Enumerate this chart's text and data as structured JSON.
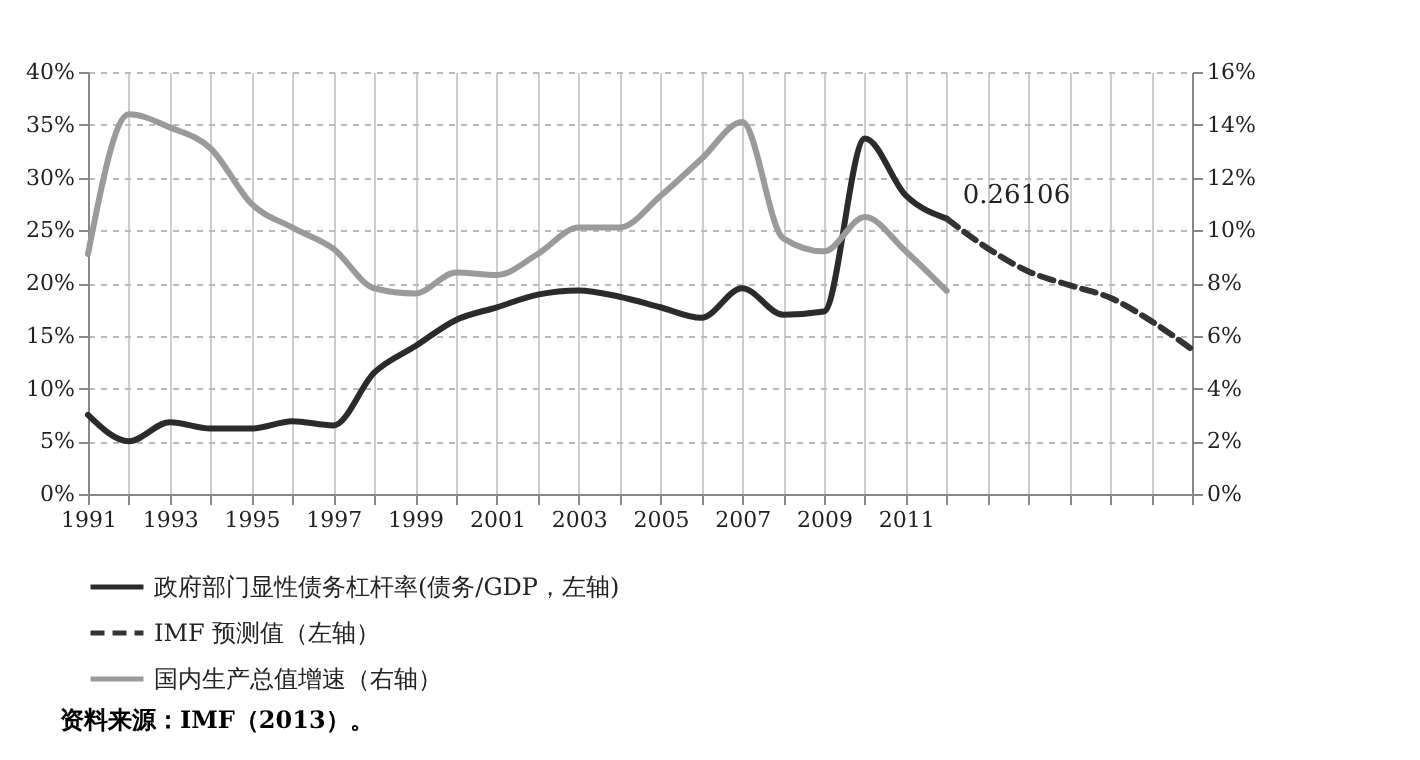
{
  "chart_data": {
    "type": "line",
    "xlim": [
      1991,
      2018
    ],
    "xticks": [
      1991,
      {
        "value": 1992,
        "label": null
      },
      1993,
      {
        "value": 1994,
        "label": null
      },
      1995,
      {
        "value": 1996,
        "label": null
      },
      1997,
      {
        "value": 1998,
        "label": null
      },
      1999,
      {
        "value": 2000,
        "label": null
      },
      2001,
      {
        "value": 2002,
        "label": null
      },
      2003,
      {
        "value": 2004,
        "label": null
      },
      2005,
      {
        "value": 2006,
        "label": null
      },
      2007,
      {
        "value": 2008,
        "label": null
      },
      2009,
      {
        "value": 2010,
        "label": null
      },
      2011,
      {
        "value": 2012,
        "label": null
      },
      {
        "value": 2013,
        "label": null
      },
      {
        "value": 2014,
        "label": null
      },
      {
        "value": 2015,
        "label": null
      },
      {
        "value": 2016,
        "label": null
      },
      {
        "value": 2017,
        "label": null
      },
      {
        "value": 2018,
        "label": null
      }
    ],
    "ylim": [
      0,
      40
    ],
    "yticks": [
      {
        "value": 0,
        "label": "0%"
      },
      {
        "value": 5,
        "label": "5%"
      },
      {
        "value": 10,
        "label": "10%"
      },
      {
        "value": 15,
        "label": "15%"
      },
      {
        "value": 20,
        "label": "20%"
      },
      {
        "value": 25,
        "label": "25%"
      },
      {
        "value": 30,
        "label": "30%"
      },
      {
        "value": 35,
        "label": "35%"
      },
      {
        "value": 40,
        "label": "40%"
      }
    ],
    "y2lim": [
      0,
      16
    ],
    "y2ticks": [
      {
        "value": 0,
        "label": "0%"
      },
      {
        "value": 2,
        "label": "2%"
      },
      {
        "value": 4,
        "label": "4%"
      },
      {
        "value": 6,
        "label": "6%"
      },
      {
        "value": 8,
        "label": "8%"
      },
      {
        "value": 10,
        "label": "10%"
      },
      {
        "value": 12,
        "label": "12%"
      },
      {
        "value": 14,
        "label": "14%"
      },
      {
        "value": 16,
        "label": "16%"
      }
    ],
    "grid": true,
    "legend": "bottom",
    "annotations": [
      {
        "text": "0.26106",
        "x": 2012,
        "y": 26.106
      },
      "资料来源：IMF（2013）。"
    ],
    "series": [
      {
        "name": "政府部门显性债务杠杆率(债务/GDP，左轴)",
        "color": "#2b2b2b",
        "line_style": "solid",
        "x": [
          1991,
          1992,
          1993,
          1994,
          1995,
          1996,
          1997,
          1998,
          1999,
          2000,
          2001,
          2002,
          2003,
          2004,
          2005,
          2006,
          2007,
          2008,
          2009,
          2010,
          2011,
          2012
        ],
        "values": [
          7.5,
          5,
          6.8,
          6.2,
          6.2,
          6.9,
          6.5,
          11.5,
          14,
          16.5,
          17.7,
          18.9,
          19.3,
          18.7,
          17.7,
          16.7,
          19.5,
          17,
          17.3,
          33.7,
          28.3,
          26.106
        ]
      },
      {
        "name": "IMF 预测值（左轴）",
        "color": "#333333",
        "line_style": "dashed",
        "x": [
          2012,
          2013,
          2014,
          2015,
          2016,
          2017,
          2018
        ],
        "values": [
          26.106,
          23.3,
          21.1,
          19.8,
          18.6,
          16.4,
          13.7
        ]
      },
      {
        "name": "国内生产总值增速（右轴）",
        "color": "#9a9a9a",
        "line_style": "solid",
        "axis": "y2",
        "x": [
          1991,
          1992,
          1993,
          1994,
          1995,
          1996,
          1997,
          1998,
          1999,
          2000,
          2001,
          2002,
          2003,
          2004,
          2005,
          2006,
          2007,
          2008,
          2009,
          2010,
          2011,
          2012
        ],
        "values": [
          9.1,
          14.4,
          13.9,
          13.1,
          11,
          10.1,
          9.3,
          7.8,
          7.6,
          8.4,
          8.3,
          9.1,
          10.1,
          10.1,
          11.3,
          12.7,
          14.1,
          9.7,
          9.2,
          10.5,
          9.2,
          7.7
        ]
      }
    ]
  }
}
